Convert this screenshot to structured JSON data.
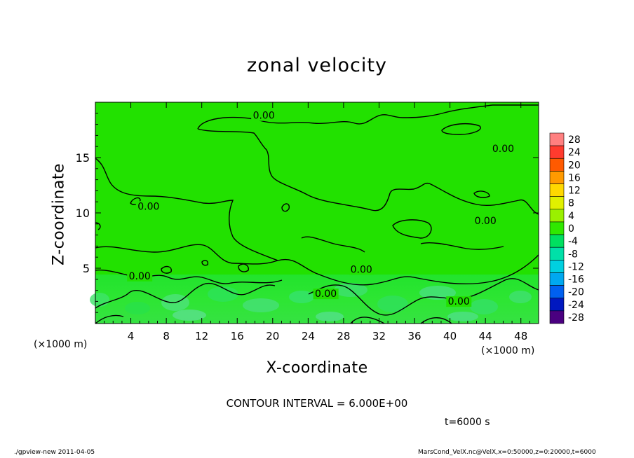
{
  "chart_data": {
    "type": "heatmap",
    "title": "zonal velocity",
    "xlabel": "X-coordinate",
    "ylabel": "Z-coordinate",
    "x_unit": "(×1000 m)",
    "xlim": [
      0,
      50
    ],
    "ylim": [
      0,
      20
    ],
    "x_ticks": [
      4,
      8,
      12,
      16,
      20,
      24,
      28,
      32,
      36,
      40,
      44,
      48
    ],
    "y_ticks": [
      5,
      10,
      15
    ],
    "colorbar_levels": [
      28,
      24,
      20,
      16,
      12,
      8,
      4,
      0,
      -4,
      -8,
      -12,
      -16,
      -20,
      -24,
      -28
    ],
    "colorbar_colors": [
      "#ff8080",
      "#ff3b2e",
      "#ff5a00",
      "#ff9a00",
      "#ffd800",
      "#e0f000",
      "#9af000",
      "#30e800",
      "#00e060",
      "#00e0a8",
      "#00d0e0",
      "#00a8f0",
      "#0060f0",
      "#0018c0",
      "#4a0080"
    ],
    "contour_label": "0.00",
    "contour_label_positions": [
      [
        19,
        18.5
      ],
      [
        46,
        15.5
      ],
      [
        6,
        10.3
      ],
      [
        44,
        9.0
      ],
      [
        5,
        4.0
      ],
      [
        30,
        4.6
      ],
      [
        26,
        2.4
      ],
      [
        41,
        1.7
      ]
    ],
    "contour_interval": "CONTOUR INTERVAL = 6.000E+00",
    "time": "t=6000 s"
  },
  "footer": {
    "left": "./gpview-new   2011-04-05",
    "right": "MarsCond_VelX.nc@VelX,x=0:50000,z=0:20000,t=6000"
  }
}
